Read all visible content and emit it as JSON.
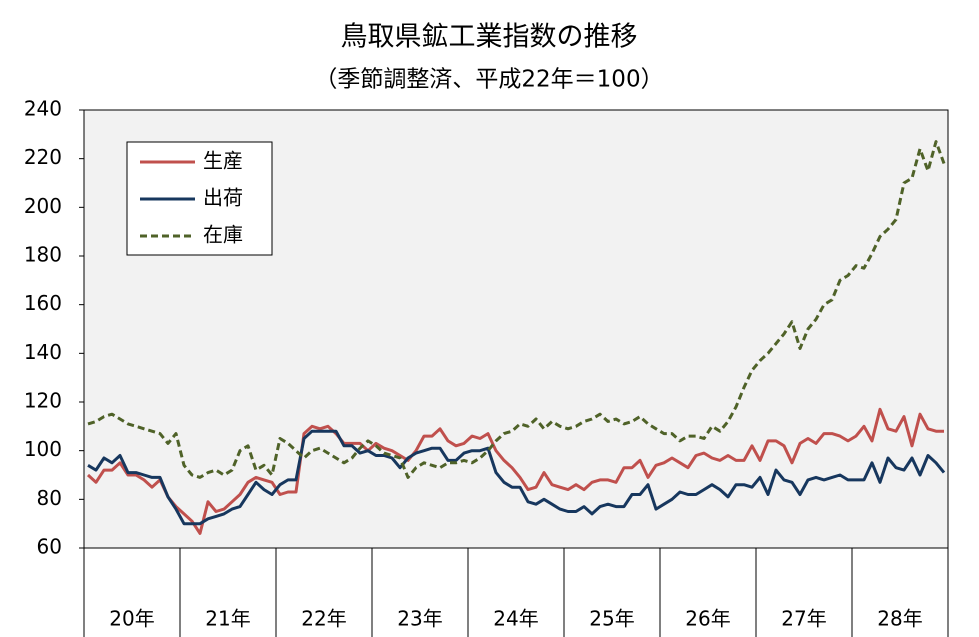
{
  "chart_data": {
    "type": "line",
    "title": "鳥取県鉱工業指数の推移",
    "subtitle": "（季節調整済、平成22年＝100）",
    "categories": [
      "20年",
      null,
      null,
      null,
      null,
      null,
      null,
      null,
      null,
      null,
      null,
      null,
      "21年",
      null,
      null,
      null,
      null,
      null,
      null,
      null,
      null,
      null,
      null,
      null,
      "22年",
      null,
      null,
      null,
      null,
      null,
      null,
      null,
      null,
      null,
      null,
      null,
      "23年",
      null,
      null,
      null,
      null,
      null,
      null,
      null,
      null,
      null,
      null,
      null,
      "24年",
      null,
      null,
      null,
      null,
      null,
      null,
      null,
      null,
      null,
      null,
      null,
      "25年",
      null,
      null,
      null,
      null,
      null,
      null,
      null,
      null,
      null,
      null,
      null,
      "26年",
      null,
      null,
      null,
      null,
      null,
      null,
      null,
      null,
      null,
      null,
      null,
      "27年",
      null,
      null,
      null,
      null,
      null,
      null,
      null,
      null,
      null,
      null,
      null,
      "28年",
      null,
      null,
      null,
      null,
      null,
      null,
      null,
      null,
      null,
      null,
      null
    ],
    "series": [
      {
        "name": "生産",
        "color": "#c0504d",
        "dash": false,
        "values": [
          90,
          87,
          92,
          92,
          95,
          90,
          90,
          88,
          85,
          88,
          81,
          77,
          74,
          71,
          66,
          79,
          75,
          76,
          79,
          82,
          87,
          89,
          88,
          87,
          82,
          83,
          83,
          107,
          110,
          109,
          110,
          107,
          103,
          103,
          103,
          100,
          103,
          101,
          100,
          98,
          96,
          100,
          106,
          106,
          109,
          104,
          102,
          103,
          106,
          105,
          107,
          100,
          96,
          93,
          89,
          84,
          85,
          91,
          86,
          85,
          84,
          86,
          84,
          87,
          88,
          88,
          87,
          93,
          93,
          96,
          89,
          94,
          95,
          97,
          95,
          93,
          98,
          99,
          97,
          96,
          98,
          96,
          96,
          102,
          96,
          104,
          104,
          102,
          95,
          103,
          105,
          103,
          107,
          107,
          106,
          104,
          106,
          110,
          104,
          117,
          109,
          108,
          114,
          102,
          115,
          109,
          108,
          108
        ]
      },
      {
        "name": "出荷",
        "color": "#17375e",
        "dash": false,
        "values": [
          94,
          92,
          97,
          95,
          98,
          91,
          91,
          90,
          89,
          89,
          81,
          76,
          70,
          70,
          70,
          72,
          73,
          74,
          76,
          77,
          82,
          87,
          84,
          82,
          86,
          88,
          88,
          105,
          108,
          108,
          108,
          108,
          102,
          102,
          99,
          100,
          98,
          98,
          97,
          93,
          97,
          99,
          100,
          101,
          101,
          96,
          96,
          99,
          100,
          100,
          101,
          91,
          87,
          85,
          85,
          79,
          78,
          80,
          78,
          76,
          75,
          75,
          77,
          74,
          77,
          78,
          77,
          77,
          82,
          82,
          86,
          76,
          78,
          80,
          83,
          82,
          82,
          84,
          86,
          84,
          81,
          86,
          86,
          85,
          89,
          82,
          92,
          88,
          87,
          82,
          88,
          89,
          88,
          89,
          90,
          88,
          88,
          88,
          95,
          87,
          97,
          93,
          92,
          97,
          90,
          98,
          95,
          91
        ]
      },
      {
        "name": "在庫",
        "color": "#4f6228",
        "dash": true,
        "values": [
          111,
          112,
          114,
          115,
          113,
          111,
          110,
          109,
          108,
          107,
          103,
          107,
          94,
          90,
          89,
          91,
          92,
          90,
          92,
          100,
          102,
          92,
          94,
          90,
          105,
          103,
          100,
          97,
          100,
          101,
          99,
          97,
          95,
          97,
          101,
          104,
          102,
          99,
          98,
          97,
          89,
          93,
          95,
          94,
          93,
          95,
          95,
          96,
          95,
          97,
          100,
          104,
          107,
          108,
          111,
          110,
          113,
          109,
          112,
          110,
          109,
          110,
          112,
          113,
          115,
          112,
          113,
          111,
          112,
          114,
          111,
          109,
          107,
          107,
          104,
          106,
          106,
          105,
          110,
          108,
          112,
          118,
          126,
          133,
          137,
          140,
          144,
          148,
          153,
          142,
          150,
          154,
          160,
          162,
          170,
          172,
          176,
          175,
          181,
          188,
          191,
          195,
          210,
          212,
          224,
          215,
          227,
          218
        ]
      }
    ],
    "ylim": [
      60,
      240
    ],
    "yticks": [
      60,
      80,
      100,
      120,
      140,
      160,
      180,
      200,
      220,
      240
    ],
    "grid": false,
    "legend": "upper left"
  }
}
